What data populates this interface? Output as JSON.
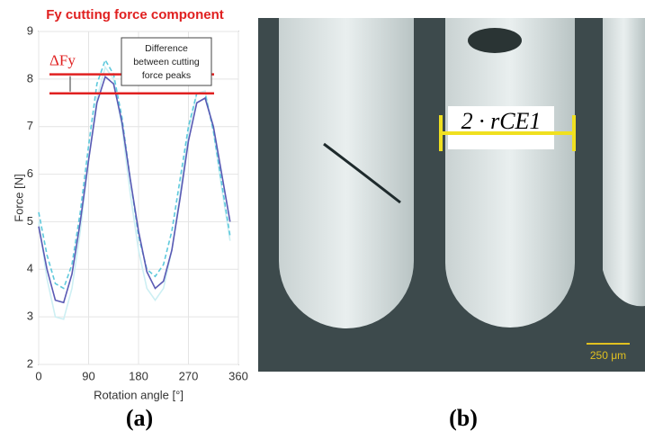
{
  "chart_data": {
    "type": "line",
    "title": "Fy cutting force component",
    "x_label": "Rotation angle [°]",
    "y_label": "Force [N]",
    "x": [
      0,
      15,
      30,
      45,
      60,
      75,
      90,
      105,
      120,
      135,
      150,
      165,
      180,
      195,
      210,
      225,
      240,
      255,
      270,
      285,
      300,
      315,
      330,
      345
    ],
    "series": [
      {
        "color": "#cdeff3",
        "dash": false,
        "values": [
          5.0,
          3.8,
          3.0,
          2.95,
          3.6,
          4.8,
          6.3,
          7.6,
          8.25,
          8.0,
          7.0,
          5.6,
          4.4,
          3.6,
          3.35,
          3.6,
          4.4,
          5.6,
          6.9,
          7.7,
          7.75,
          6.9,
          5.7,
          4.6
        ]
      },
      {
        "color": "#5ec9dc",
        "dash": true,
        "values": [
          5.2,
          4.3,
          3.7,
          3.6,
          4.1,
          5.2,
          6.6,
          7.9,
          8.4,
          8.1,
          7.2,
          5.9,
          4.7,
          4.0,
          3.85,
          4.1,
          4.8,
          5.9,
          7.0,
          7.7,
          7.7,
          6.9,
          5.8,
          4.7
        ]
      },
      {
        "color": "#5a5ab4",
        "dash": false,
        "values": [
          4.9,
          4.0,
          3.35,
          3.3,
          3.9,
          5.0,
          6.3,
          7.5,
          8.05,
          7.9,
          7.1,
          5.9,
          4.8,
          3.95,
          3.6,
          3.75,
          4.4,
          5.5,
          6.7,
          7.5,
          7.6,
          7.0,
          6.0,
          5.0
        ]
      }
    ],
    "xlim": [
      0,
      360
    ],
    "xticks": [
      0,
      90,
      180,
      270,
      360
    ],
    "ylim": [
      2,
      9
    ],
    "yticks": [
      2,
      3,
      4,
      5,
      6,
      7,
      8,
      9
    ],
    "grid": true,
    "peak_lines": [
      8.1,
      7.7
    ],
    "peak_color": "#e02020",
    "delta_label": "ΔFy",
    "annotation_lines": [
      "Difference",
      "between cutting",
      "force peaks"
    ]
  },
  "photo": {
    "dimension_label": "2 · rCE1",
    "scale_bar": "250 μm"
  },
  "panel_labels": [
    "(a)",
    "(b)"
  ]
}
